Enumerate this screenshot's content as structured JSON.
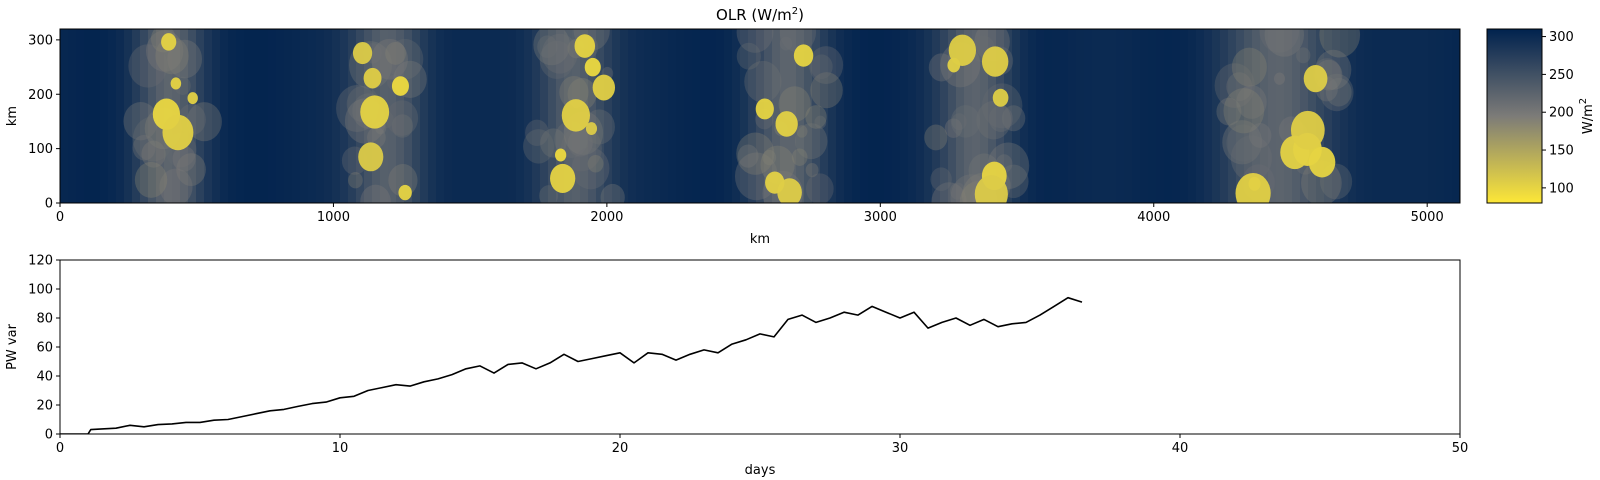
{
  "chart_data": [
    {
      "type": "heatmap",
      "title": "OLR (W/m$^2$)",
      "title_main": "OLR (W/m",
      "title_sup": "2",
      "title_close": ")",
      "xlabel": "km",
      "ylabel": "km",
      "xlim": [
        0,
        5120
      ],
      "ylim": [
        0,
        320
      ],
      "xticks": [
        0,
        1000,
        2000,
        3000,
        4000,
        5000
      ],
      "yticks": [
        0,
        100,
        200,
        300
      ],
      "colormap": "cividis_r",
      "colorbar": {
        "label_main": "W/m",
        "label_sup": "2",
        "range": [
          80,
          310
        ],
        "ticks": [
          100,
          150,
          200,
          250,
          300
        ],
        "low_color": "#fde737",
        "mid_color": "#7c7b78",
        "high_color": "#00224e"
      },
      "convective_bands_km": [
        {
          "center": 400,
          "width": 300
        },
        {
          "center": 1200,
          "width": 330
        },
        {
          "center": 1880,
          "width": 330
        },
        {
          "center": 2660,
          "width": 330
        },
        {
          "center": 3350,
          "width": 330
        },
        {
          "center": 4460,
          "width": 500
        }
      ]
    },
    {
      "type": "line",
      "xlabel": "days",
      "ylabel": "PW var",
      "xlim": [
        0,
        50
      ],
      "ylim": [
        0,
        120
      ],
      "xticks": [
        0,
        10,
        20,
        30,
        40,
        50
      ],
      "yticks": [
        0,
        20,
        40,
        60,
        80,
        100,
        120
      ],
      "color": "#000000",
      "x": [
        0,
        1,
        1.1,
        1.5,
        2,
        2.5,
        3,
        3.5,
        4,
        4.5,
        5,
        5.5,
        6,
        6.5,
        7,
        7.5,
        8,
        8.5,
        9,
        9.5,
        10,
        10.5,
        11,
        11.5,
        12,
        12.5,
        13,
        13.5,
        14,
        14.5,
        15,
        15.5,
        16,
        16.5,
        17,
        17.5,
        18,
        18.5,
        19,
        19.5,
        20,
        20.5,
        21,
        21.5,
        22,
        22.5,
        23,
        23.5,
        24,
        24.5,
        25,
        25.5,
        26,
        26.5,
        27,
        27.5,
        28,
        28.5,
        29,
        29.5,
        30,
        30.5,
        31,
        31.5,
        32,
        32.5,
        33,
        33.5,
        34,
        34.5,
        35,
        35.5,
        36,
        36.5
      ],
      "y": [
        0,
        0,
        3,
        3.5,
        4,
        6,
        5,
        6.5,
        7,
        8,
        8,
        9.5,
        10,
        12,
        14,
        16,
        17,
        19,
        21,
        22,
        25,
        26,
        30,
        32,
        34,
        33,
        36,
        38,
        41,
        45,
        47,
        42,
        48,
        49,
        45,
        49,
        55,
        50,
        52,
        54,
        56,
        49,
        56,
        55,
        51,
        55,
        58,
        56,
        62,
        65,
        69,
        67,
        79,
        82,
        77,
        80,
        84,
        82,
        88,
        84,
        80,
        84,
        73,
        77,
        80,
        75,
        79,
        74,
        76,
        77,
        82,
        88,
        94,
        91
      ]
    }
  ]
}
